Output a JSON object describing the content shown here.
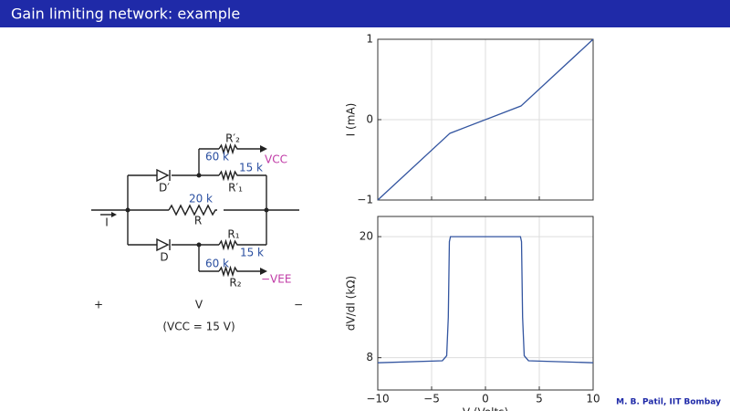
{
  "header": {
    "title": "Gain limiting network: example"
  },
  "circuit": {
    "r2p": "R′₂",
    "r2p_val": "60 k",
    "vcc": "VCC",
    "r1p_val": "15 k",
    "r1p": "R′₁",
    "dp": "D′",
    "r_val": "20 k",
    "r": "R",
    "current": "I",
    "r1": "R₁",
    "r1_val": "15 k",
    "d": "D",
    "r2_val": "60 k",
    "r2": "R₂",
    "vee": "−VEE",
    "plus": "+",
    "v": "V",
    "minus": "−",
    "note": "(VCC = 15 V)"
  },
  "chart_data": [
    {
      "type": "line",
      "ylabel": "I (mA)",
      "color": "#3355a0",
      "x": [
        -10,
        -3.3,
        3.3,
        10
      ],
      "values": [
        -1.0,
        -0.17,
        0.17,
        1.0
      ],
      "xlim": [
        -10,
        10
      ],
      "xticks": [
        {
          "value": -10,
          "label": "−10"
        },
        {
          "value": -5,
          "label": "−5"
        },
        0,
        5,
        10
      ],
      "xticklabels": false,
      "ylim": [
        -1,
        1
      ],
      "yticks": [
        {
          "value": -1,
          "label": "−1"
        },
        0,
        1
      ],
      "grid": true
    },
    {
      "type": "line",
      "ylabel": "dV/dI (kΩ)",
      "xlabel": "V (Volts)",
      "color": "#3355a0",
      "x": [
        -10,
        -4,
        -3.6,
        -3.45,
        -3.35,
        -3.25,
        3.25,
        3.35,
        3.45,
        3.6,
        4,
        10
      ],
      "values": [
        7.5,
        7.7,
        8.2,
        12,
        19.5,
        20,
        20,
        19.5,
        12,
        8.2,
        7.7,
        7.5
      ],
      "xlim": [
        -10,
        10
      ],
      "xticks": [
        {
          "value": -10,
          "label": "−10"
        },
        {
          "value": -5,
          "label": "−5"
        },
        0,
        5,
        10
      ],
      "xticklabels": true,
      "ylim": [
        4.8,
        22
      ],
      "yticks": [
        8,
        20
      ],
      "grid": true
    }
  ],
  "footer": {
    "credit": "M. B. Patil, IIT Bombay"
  }
}
